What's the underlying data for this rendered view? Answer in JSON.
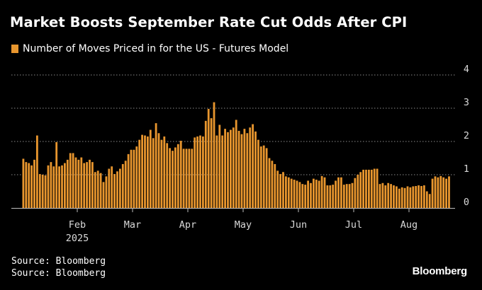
{
  "title": "Market Boosts September Rate Cut Odds After CPI",
  "sources": [
    "Source: Bloomberg",
    "Source: Bloomberg"
  ],
  "brand": "Bloomberg",
  "colors": {
    "background": "#000000",
    "bar": "#e8962e",
    "grid": "#8a8a8a",
    "text": "#ffffff",
    "tick": "#d9d9d9"
  },
  "chart_data": {
    "type": "bar",
    "legend": "Number of Moves Priced in for the US - Futures Model",
    "legend_position": "top-left",
    "grid": true,
    "ylim": [
      0,
      4
    ],
    "yticks": [
      0,
      1,
      2,
      3,
      4
    ],
    "month_ticks": [
      {
        "label": "Feb",
        "index": 20
      },
      {
        "label": "Mar",
        "index": 40
      },
      {
        "label": "Apr",
        "index": 60
      },
      {
        "label": "May",
        "index": 80
      },
      {
        "label": "Jun",
        "index": 100
      },
      {
        "label": "Jul",
        "index": 120
      },
      {
        "label": "Aug",
        "index": 140
      }
    ],
    "year_label": "2025",
    "year_under": "Feb",
    "values": [
      1.48,
      1.38,
      1.35,
      1.28,
      1.45,
      2.18,
      1.02,
      1.0,
      0.98,
      1.28,
      1.38,
      1.25,
      1.98,
      1.25,
      1.28,
      1.35,
      1.45,
      1.65,
      1.65,
      1.52,
      1.45,
      1.52,
      1.35,
      1.38,
      1.45,
      1.38,
      1.08,
      1.12,
      1.05,
      0.78,
      0.95,
      1.18,
      1.25,
      1.02,
      1.1,
      1.18,
      1.32,
      1.42,
      1.62,
      1.75,
      1.75,
      1.85,
      2.05,
      2.2,
      2.18,
      2.15,
      2.35,
      2.1,
      2.55,
      2.25,
      2.05,
      2.15,
      1.95,
      1.8,
      1.72,
      1.82,
      1.92,
      2.02,
      1.78,
      1.78,
      1.78,
      1.78,
      2.12,
      2.15,
      2.18,
      2.15,
      2.62,
      2.98,
      2.7,
      3.18,
      2.18,
      2.5,
      2.18,
      2.38,
      2.28,
      2.35,
      2.42,
      2.65,
      2.32,
      2.22,
      2.38,
      2.25,
      2.42,
      2.52,
      2.3,
      2.05,
      1.85,
      1.88,
      1.8,
      1.5,
      1.42,
      1.32,
      1.12,
      1.02,
      1.08,
      0.95,
      0.92,
      0.88,
      0.85,
      0.82,
      0.78,
      0.72,
      0.7,
      0.82,
      0.75,
      0.88,
      0.85,
      0.82,
      0.96,
      0.92,
      0.68,
      0.68,
      0.7,
      0.82,
      0.92,
      0.92,
      0.7,
      0.72,
      0.72,
      0.75,
      0.9,
      1.0,
      1.08,
      1.15,
      1.15,
      1.15,
      1.15,
      1.18,
      1.18,
      0.72,
      0.75,
      0.68,
      0.75,
      0.72,
      0.68,
      0.65,
      0.58,
      0.62,
      0.6,
      0.65,
      0.62,
      0.65,
      0.66,
      0.68,
      0.66,
      0.68,
      0.5,
      0.42,
      0.88,
      0.95,
      0.92,
      0.96,
      0.92,
      0.88,
      0.95
    ]
  }
}
